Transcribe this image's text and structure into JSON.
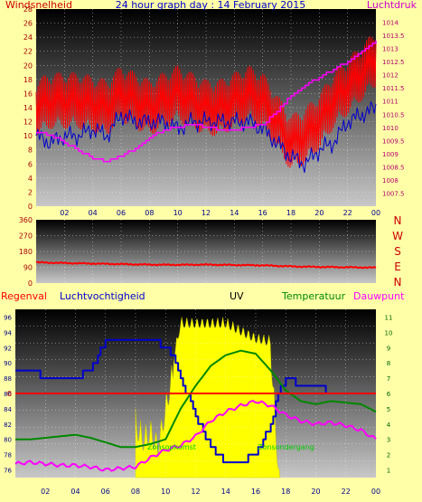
{
  "chart_data": [
    {
      "type": "line",
      "title": "24 hour graph day : 14 February 2015",
      "left_label": "Windsnelheid",
      "right_label": "Luchtdruk",
      "x_ticks": [
        "02",
        "04",
        "06",
        "08",
        "10",
        "12",
        "14",
        "16",
        "18",
        "20",
        "22",
        "00"
      ],
      "y_left_ticks": [
        "0",
        "2",
        "4",
        "6",
        "8",
        "10",
        "12",
        "14",
        "16",
        "18",
        "20",
        "22",
        "24",
        "26",
        "28"
      ],
      "y_right_ticks": [
        "1007.5",
        "1008",
        "1008.5",
        "1009",
        "1009.5",
        "1010",
        "1010.5",
        "1011",
        "1011.5",
        "1012",
        "1012.5",
        "1013",
        "1013.5",
        "1014"
      ],
      "ylim_left": [
        0,
        28
      ],
      "ylim_right": [
        1007,
        1014.5
      ],
      "x": [
        0,
        1,
        2,
        3,
        4,
        5,
        6,
        7,
        8,
        9,
        10,
        11,
        12,
        13,
        14,
        15,
        16,
        17,
        18,
        19,
        20,
        21,
        22,
        23,
        24
      ],
      "series": [
        {
          "axis": "left",
          "color": "#ff0000",
          "values": [
            14,
            15,
            15,
            15,
            14.5,
            14,
            16,
            15,
            14,
            15,
            16,
            15,
            14,
            14,
            15,
            16,
            15,
            12,
            9,
            10,
            12,
            15,
            17,
            19,
            21
          ]
        },
        {
          "axis": "left",
          "color": "#0000cc",
          "values": [
            10,
            9,
            10,
            10,
            11,
            10,
            13,
            12,
            12,
            12,
            11,
            12,
            12,
            12,
            12,
            12,
            11,
            9,
            7,
            6,
            8,
            9,
            12,
            13,
            14
          ]
        },
        {
          "axis": "right",
          "color": "#ff00ff",
          "values": [
            1009.8,
            1009.7,
            1009.4,
            1009.1,
            1008.8,
            1008.7,
            1008.9,
            1009.2,
            1009.6,
            1009.9,
            1010.0,
            1010.1,
            1010.0,
            1009.9,
            1009.9,
            1010.0,
            1010.1,
            1010.6,
            1011.2,
            1011.6,
            1011.9,
            1012.2,
            1012.5,
            1012.9,
            1013.3
          ]
        }
      ]
    },
    {
      "type": "line",
      "right_labels": [
        "N",
        "W",
        "S",
        "E",
        "N"
      ],
      "y_ticks": [
        "0",
        "90",
        "180",
        "270",
        "360"
      ],
      "ylim": [
        0,
        360
      ],
      "x": [
        0,
        2,
        4,
        6,
        8,
        10,
        12,
        14,
        16,
        18,
        20,
        22,
        24
      ],
      "series": [
        {
          "color": "#ff0000",
          "values": [
            118,
            114,
            111,
            108,
            105,
            104,
            105,
            103,
            101,
            95,
            92,
            90,
            88
          ]
        }
      ]
    },
    {
      "type": "line",
      "legend": [
        "Regenval",
        "Luchtvochtigheid",
        "UV",
        "Temperatuur",
        "Dauwpunt"
      ],
      "legend_colors": [
        "#ff0000",
        "#0000cc",
        "#000000",
        "#008800",
        "#ff00ff"
      ],
      "y_left_ticks": [
        "76",
        "78",
        "80",
        "82",
        "84",
        "86",
        "88",
        "90",
        "92",
        "94",
        "96"
      ],
      "y_right_ticks": [
        "1",
        "2",
        "3",
        "4",
        "5",
        "6",
        "7",
        "8",
        "9",
        "10",
        "11"
      ],
      "rain_label": "0",
      "annotations": [
        "Zonsopkomst",
        "Zonsondergang"
      ],
      "ylim_left": [
        75,
        97
      ],
      "ylim_right": [
        0.5,
        11.5
      ],
      "x_ticks": [
        "02",
        "04",
        "06",
        "08",
        "10",
        "12",
        "14",
        "16",
        "18",
        "20",
        "22",
        "00"
      ],
      "series": [
        {
          "name": "Luchtvochtigheid",
          "axis": "left",
          "color": "#0000cc",
          "x": [
            0,
            1,
            2,
            3,
            4,
            5,
            6,
            7,
            8,
            9,
            10,
            10.5,
            11,
            12,
            13,
            14,
            15,
            16,
            17,
            17.5,
            18,
            19,
            20,
            21,
            22,
            23,
            24
          ],
          "values": [
            89,
            89,
            88,
            88,
            88,
            89,
            93,
            93,
            93,
            93,
            92,
            91,
            88,
            83,
            79,
            77,
            77,
            78,
            82,
            86,
            88,
            87,
            87,
            86,
            86,
            86,
            86
          ]
        },
        {
          "name": "Temperatuur",
          "axis": "right",
          "color": "#008800",
          "x": [
            0,
            1,
            2,
            3,
            4,
            5,
            6,
            7,
            8,
            9,
            10,
            11,
            12,
            13,
            14,
            15,
            16,
            17,
            18,
            19,
            20,
            21,
            22,
            23,
            24
          ],
          "values": [
            3.0,
            3.0,
            3.1,
            3.2,
            3.3,
            3.1,
            2.8,
            2.5,
            2.5,
            2.7,
            3.0,
            5.0,
            6.5,
            7.8,
            8.5,
            8.8,
            8.6,
            7.5,
            6.2,
            5.5,
            5.3,
            5.5,
            5.4,
            5.3,
            4.8
          ]
        },
        {
          "name": "Dauwpunt",
          "axis": "right",
          "color": "#ff00ff",
          "x": [
            0,
            1,
            2,
            3,
            4,
            5,
            6,
            7,
            8,
            9,
            10,
            11,
            12,
            13,
            14,
            15,
            16,
            17,
            18,
            19,
            20,
            21,
            22,
            23,
            24
          ],
          "values": [
            1.4,
            1.5,
            1.4,
            1.3,
            1.3,
            1.2,
            1.0,
            1.1,
            1.2,
            1.8,
            2.3,
            2.6,
            3.2,
            4.2,
            4.8,
            5.2,
            5.5,
            5.2,
            4.6,
            4.2,
            4.0,
            4.1,
            3.9,
            3.6,
            3.0
          ]
        },
        {
          "name": "UV",
          "axis": "right",
          "color": "#ffff00",
          "x": [
            8,
            8.5,
            9,
            9.5,
            10,
            10.5,
            11,
            12,
            13,
            14,
            15,
            16,
            17,
            17.6
          ],
          "values": [
            5.0,
            4.0,
            4.5,
            3.5,
            6.0,
            8.5,
            11.0,
            11.0,
            11.0,
            11.0,
            10.5,
            10.0,
            9.8,
            0.5
          ]
        }
      ]
    }
  ],
  "colors": {
    "background": "#ffffa8",
    "plot_top": "#000000",
    "plot_bottom": "#c8c8c8",
    "axis_text": "#00008b",
    "pressure_axis_text": "#b4006e",
    "left_axis_text": "#aa0000"
  }
}
